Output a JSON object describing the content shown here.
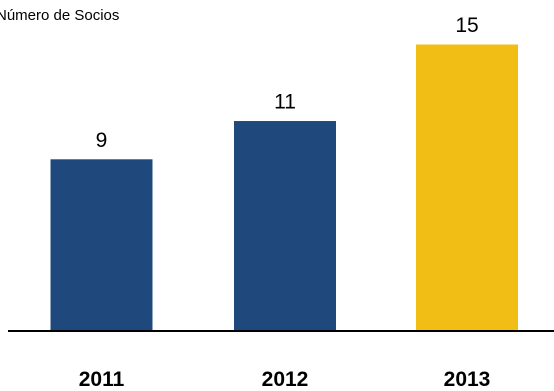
{
  "chart_data": {
    "type": "bar",
    "title": "Número de Socios",
    "xlabel": "",
    "ylabel": "",
    "categories": [
      "2011",
      "2012",
      "2013"
    ],
    "values": [
      9,
      11,
      15
    ],
    "value_labels": [
      "9",
      "11",
      "15"
    ],
    "ylim": [
      0,
      15
    ],
    "grid": false,
    "legend": "none",
    "colors": {
      "default_bar": "#1F497D",
      "highlight_bar": "#F0BE14",
      "axis": "#000000"
    },
    "highlight_index": 2
  }
}
